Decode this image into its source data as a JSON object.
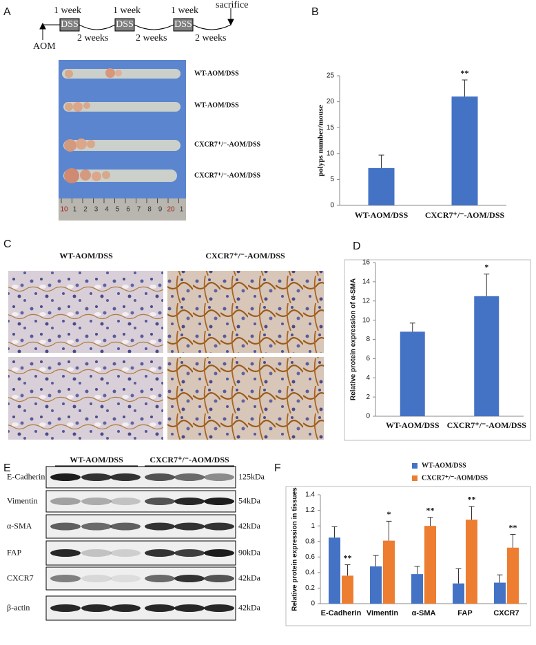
{
  "panel_labels": [
    "A",
    "B",
    "C",
    "D",
    "E",
    "F"
  ],
  "timeline": {
    "week_labels": [
      "1 week",
      "1 week",
      "1 week"
    ],
    "dss_labels": [
      "DSS",
      "DSS",
      "DSS"
    ],
    "gap_labels": [
      "2 weeks",
      "2 weeks",
      "2 weeks"
    ],
    "start_label": "AOM",
    "end_label": "sacrifice"
  },
  "photo": {
    "sample_labels": [
      "WT-AOM/DSS",
      "WT-AOM/DSS",
      "CXCR7⁺/⁻-AOM/DSS",
      "CXCR7⁺/⁻-AOM/DSS"
    ],
    "ruler_labels": [
      "10",
      "1",
      "2",
      "3",
      "4",
      "5",
      "6",
      "7",
      "8",
      "9",
      "20",
      "1"
    ]
  },
  "histology": {
    "titles": [
      "WT-AOM/DSS",
      "CXCR7⁺/⁻-AOM/DSS"
    ]
  },
  "blot": {
    "groups": [
      "WT-AOM/DSS",
      "CXCR7⁺/⁻-AOM/DSS"
    ],
    "rows": [
      {
        "protein": "E-Cadherin",
        "size": "125kDa"
      },
      {
        "protein": "Vimentin",
        "size": "54kDa"
      },
      {
        "protein": "α-SMA",
        "size": "42kDa"
      },
      {
        "protein": "FAP",
        "size": "90kDa"
      },
      {
        "protein": "CXCR7",
        "size": "42kDa"
      },
      {
        "protein": "β-actin",
        "size": "42kDa"
      }
    ]
  },
  "chart_data": [
    {
      "type": "bar",
      "y_label": "polyps number/mouse",
      "categories": [
        "WT-AOM/DSS",
        "CXCR7⁺/⁻-AOM/DSS"
      ],
      "values": [
        7.2,
        21
      ],
      "errors": [
        2.5,
        3.2
      ],
      "annotations": [
        null,
        "**"
      ],
      "color": "#4472c4",
      "ylim": [
        0,
        25
      ],
      "yticks": [
        0,
        5,
        10,
        15,
        20,
        25
      ]
    },
    {
      "type": "bar",
      "y_label": "Relative protein expression of α-SMA",
      "categories": [
        "WT-AOM/DSS",
        "CXCR7⁺/⁻-AOM/DSS"
      ],
      "values": [
        8.8,
        12.5
      ],
      "errors": [
        0.9,
        2.3
      ],
      "annotations": [
        null,
        "*"
      ],
      "color": "#4472c4",
      "ylim": [
        0,
        16
      ],
      "yticks": [
        0,
        2,
        4,
        6,
        8,
        10,
        12,
        14,
        16
      ]
    },
    {
      "type": "bar",
      "y_label": "Relative protein expression in  tissues",
      "categories": [
        "E-Cadherin",
        "Vimentin",
        "α-SMA",
        "FAP",
        "CXCR7"
      ],
      "series": [
        {
          "name": "WT-AOM/DSS",
          "color": "#4472c4",
          "values": [
            0.85,
            0.48,
            0.38,
            0.26,
            0.27
          ],
          "errors": [
            0.14,
            0.14,
            0.1,
            0.19,
            0.1
          ]
        },
        {
          "name": "CXCR7⁺/⁻-AOM/DSS",
          "color": "#ed7d31",
          "values": [
            0.36,
            0.81,
            1.0,
            1.08,
            0.72
          ],
          "errors": [
            0.14,
            0.25,
            0.11,
            0.17,
            0.17
          ],
          "annotations": [
            "**",
            "*",
            "**",
            "**",
            "**"
          ]
        }
      ],
      "ylim": [
        0,
        1.4
      ],
      "yticks": [
        0,
        0.2,
        0.4,
        0.6,
        0.8,
        1,
        1.2,
        1.4
      ],
      "legend": "top"
    }
  ]
}
